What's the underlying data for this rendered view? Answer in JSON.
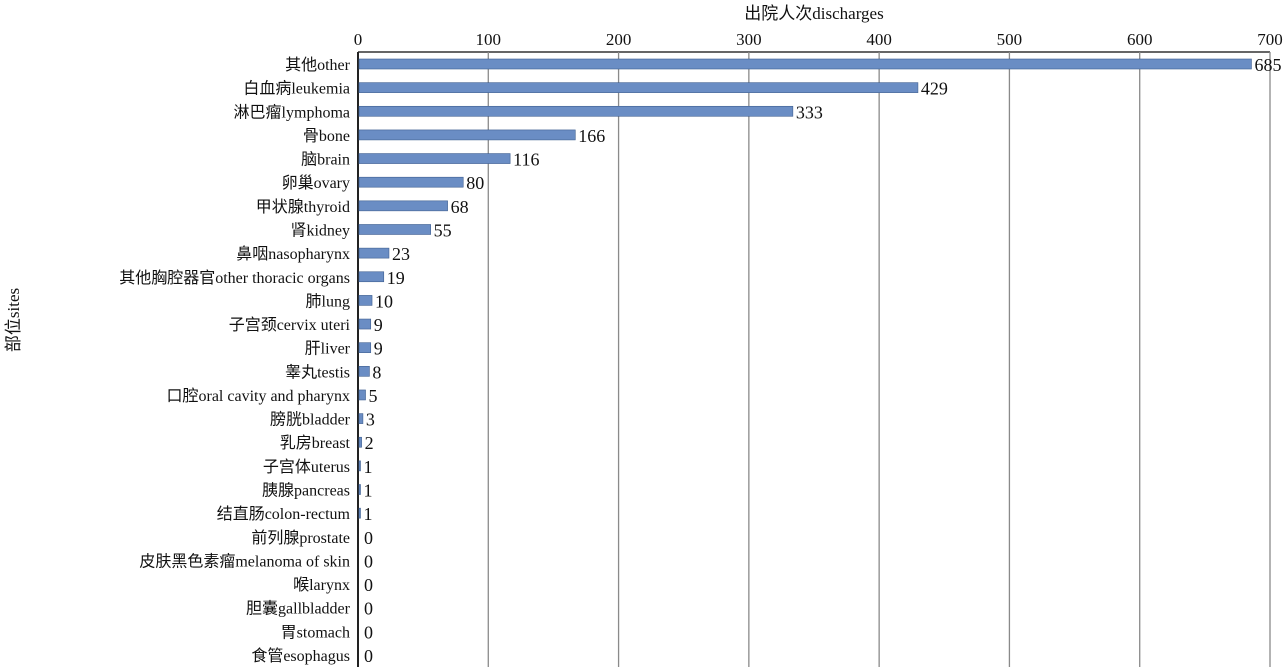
{
  "chart_data": {
    "type": "bar",
    "orientation": "horizontal",
    "xlabel": "出院人次discharges",
    "ylabel": "部位sites",
    "xlim": [
      0,
      700
    ],
    "xticks": [
      0,
      100,
      200,
      300,
      400,
      500,
      600,
      700
    ],
    "grid": true,
    "bar_color": "#6a8dc4",
    "bar_edge_color": "#3f5f90",
    "categories": [
      "其他other",
      "白血病leukemia",
      "淋巴瘤lymphoma",
      "骨bone",
      "脑brain",
      "卵巢ovary",
      "甲状腺thyroid",
      "肾kidney",
      "鼻咽nasopharynx",
      "其他胸腔器官other thoracic organs",
      "肺lung",
      "子宫颈cervix uteri",
      "肝liver",
      "睾丸testis",
      "口腔oral cavity and pharynx",
      "膀胱bladder",
      "乳房breast",
      "子宫体uterus",
      "胰腺pancreas",
      "结直肠colon-rectum",
      "前列腺prostate",
      "皮肤黑色素瘤melanoma of skin",
      "喉larynx",
      "胆囊gallbladder",
      "胃stomach",
      "食管esophagus"
    ],
    "values": [
      685,
      429,
      333,
      166,
      116,
      80,
      68,
      55,
      23,
      19,
      10,
      9,
      9,
      8,
      5,
      3,
      2,
      1,
      1,
      1,
      0,
      0,
      0,
      0,
      0,
      0
    ]
  }
}
